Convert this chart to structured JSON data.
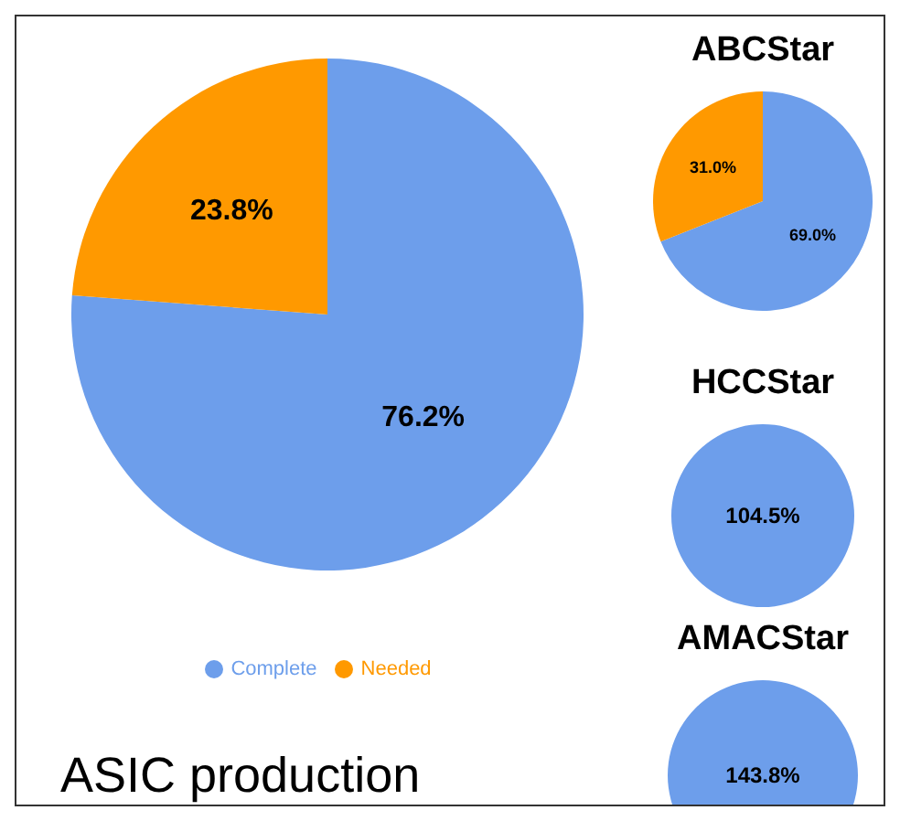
{
  "chart_data": [
    {
      "type": "pie",
      "categories": [
        "Complete",
        "Needed"
      ],
      "values": [
        76.2,
        23.8
      ],
      "colors": [
        "#6d9eeb",
        "#ff9900"
      ],
      "value_labels": [
        "76.2%",
        "23.8%"
      ],
      "legend": "bottom",
      "annotations": [
        "ASIC production"
      ]
    },
    {
      "type": "pie",
      "title": "ABCStar",
      "categories": [
        null,
        null
      ],
      "values": [
        69.0,
        31.0
      ],
      "colors": [
        "#6d9eeb",
        "#ff9900"
      ],
      "value_labels": [
        "69.0%",
        "31.0%"
      ]
    },
    {
      "type": "pie",
      "title": "HCCStar",
      "categories": [
        null
      ],
      "values": [
        104.5
      ],
      "colors": [
        "#6d9eeb"
      ],
      "value_labels": [
        "104.5%"
      ]
    },
    {
      "type": "pie",
      "title": "AMACStar",
      "categories": [
        null
      ],
      "values": [
        143.8
      ],
      "colors": [
        "#6d9eeb"
      ],
      "value_labels": [
        "143.8%"
      ]
    }
  ]
}
